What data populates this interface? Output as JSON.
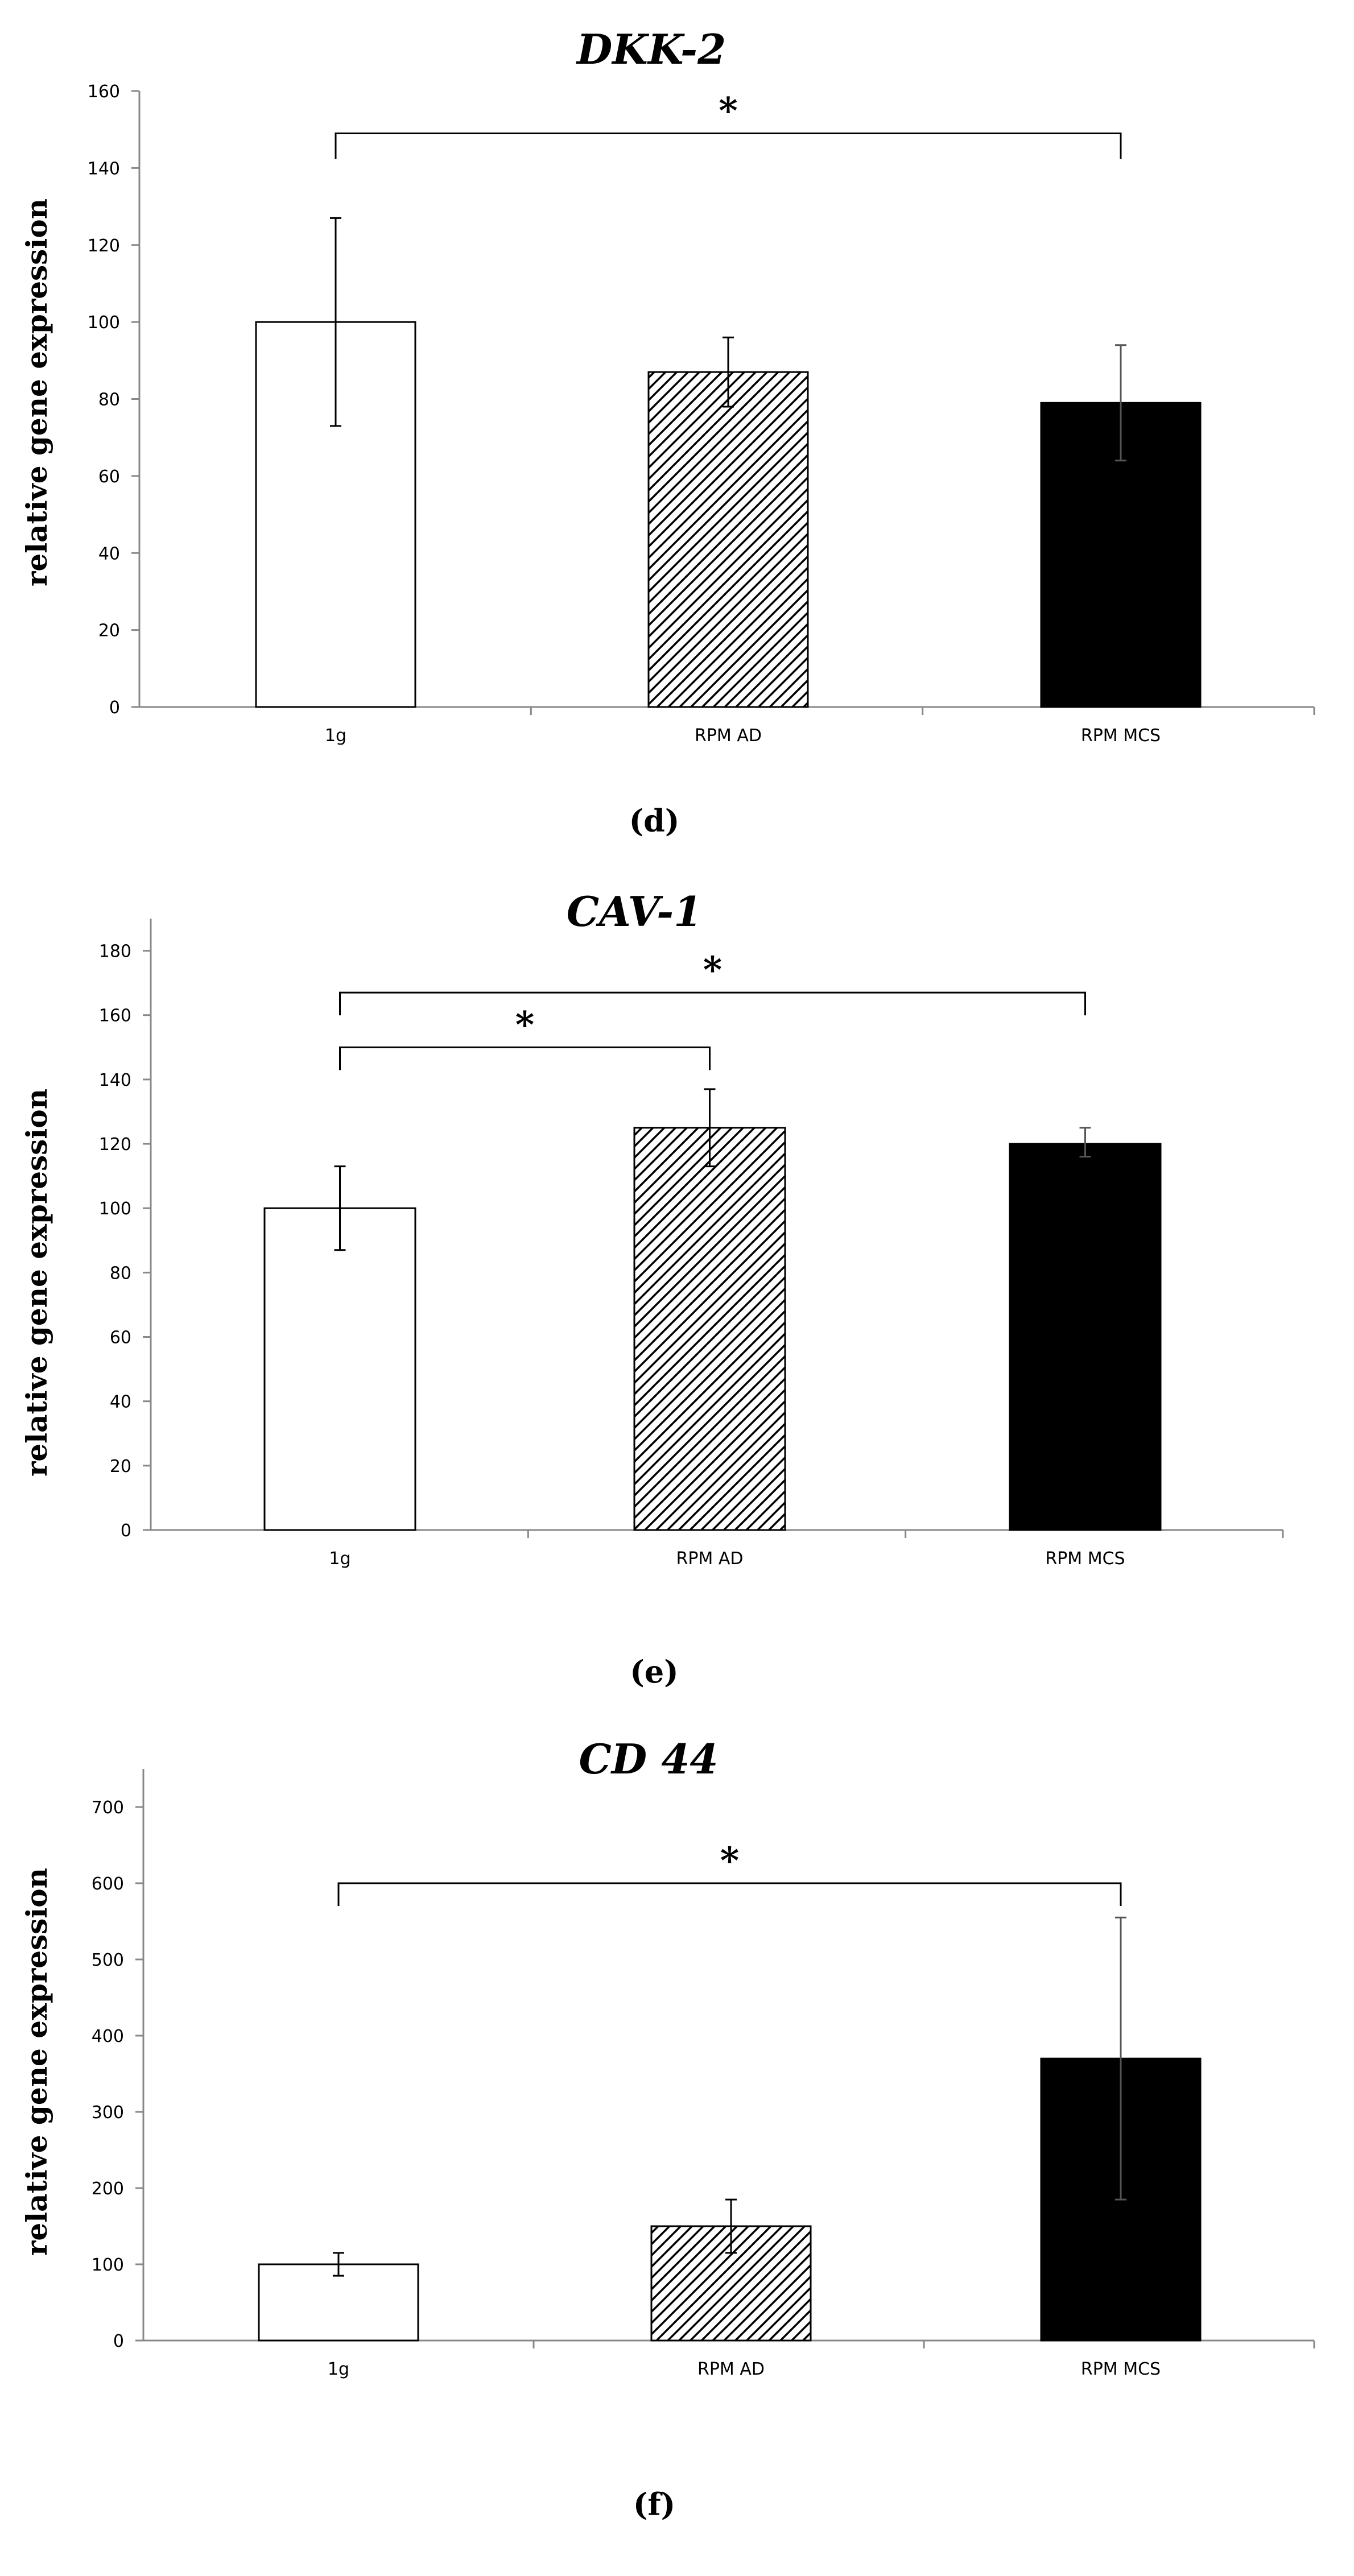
{
  "chart_data": [
    {
      "type": "bar",
      "title": "DKK-2",
      "panel_label": "(d)",
      "xlabel": "",
      "ylabel": "relative gene expression",
      "categories": [
        "1g",
        "RPM AD",
        "RPM MCS"
      ],
      "values": [
        100,
        87,
        79
      ],
      "error_upper": [
        127,
        96,
        94
      ],
      "error_lower": [
        73,
        78,
        64
      ],
      "bar_fills": [
        "white",
        "hatched",
        "black"
      ],
      "ylim": [
        0,
        160
      ],
      "yticks": [
        0,
        20,
        40,
        60,
        80,
        100,
        120,
        140,
        160
      ],
      "significance": [
        {
          "from": "1g",
          "to": "RPM MCS",
          "y": 149,
          "label": "*"
        }
      ]
    },
    {
      "type": "bar",
      "title": "CAV-1",
      "panel_label": "(e)",
      "xlabel": "",
      "ylabel": "relative gene expression",
      "categories": [
        "1g",
        "RPM AD",
        "RPM MCS"
      ],
      "values": [
        100,
        125,
        120
      ],
      "error_upper": [
        113,
        137,
        125
      ],
      "error_lower": [
        87,
        113,
        116
      ],
      "bar_fills": [
        "white",
        "hatched",
        "black"
      ],
      "ylim": [
        0,
        190
      ],
      "yticks": [
        0,
        20,
        40,
        60,
        80,
        100,
        120,
        140,
        160,
        180
      ],
      "significance": [
        {
          "from": "1g",
          "to": "RPM AD",
          "y": 150,
          "label": "*"
        },
        {
          "from": "1g",
          "to": "RPM MCS",
          "y": 167,
          "label": "*"
        }
      ]
    },
    {
      "type": "bar",
      "title": "CD 44",
      "panel_label": "(f)",
      "xlabel": "",
      "ylabel": "relative gene expression",
      "categories": [
        "1g",
        "RPM AD",
        "RPM MCS"
      ],
      "values": [
        100,
        150,
        370
      ],
      "error_upper": [
        115,
        185,
        555
      ],
      "error_lower": [
        85,
        115,
        185
      ],
      "bar_fills": [
        "white",
        "hatched",
        "black"
      ],
      "ylim": [
        0,
        750
      ],
      "yticks": [
        0,
        100,
        200,
        300,
        400,
        500,
        600,
        700
      ],
      "significance": [
        {
          "from": "1g",
          "to": "RPM MCS",
          "y": 600,
          "label": "*"
        }
      ]
    }
  ]
}
